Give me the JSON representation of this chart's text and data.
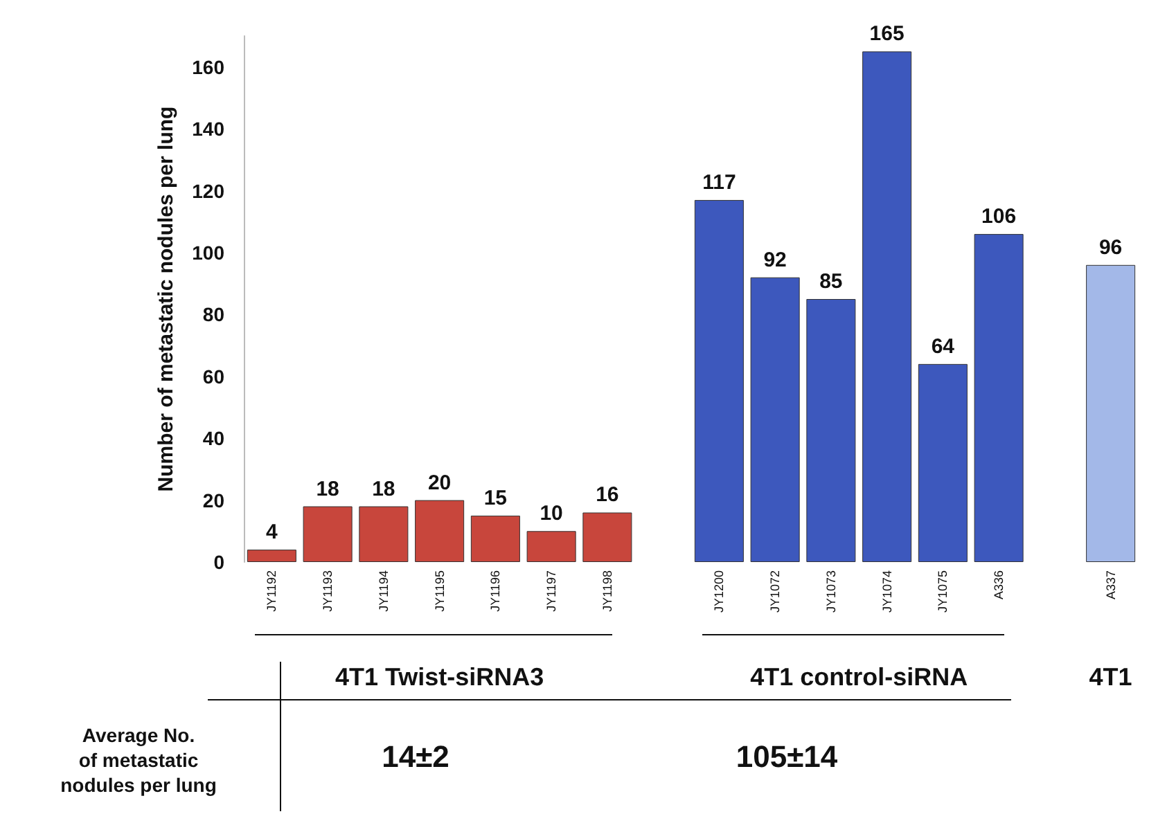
{
  "chart_data": {
    "type": "bar",
    "ylabel": "Number of metastatic nodules per lung",
    "categories": [
      "JY1192",
      "JY1193",
      "JY1194",
      "JY1195",
      "JY1196",
      "JY1197",
      "JY1198",
      null,
      "JY1200",
      "JY1072",
      "JY1073",
      "JY1074",
      "JY1075",
      "A336",
      null,
      "A337"
    ],
    "values": [
      4,
      18,
      18,
      20,
      15,
      10,
      16,
      null,
      117,
      92,
      85,
      165,
      64,
      106,
      null,
      96
    ],
    "colors": [
      "#c8463c",
      "#c8463c",
      "#c8463c",
      "#c8463c",
      "#c8463c",
      "#c8463c",
      "#c8463c",
      null,
      "#3d58bd",
      "#3d58bd",
      "#3d58bd",
      "#3d58bd",
      "#3d58bd",
      "#3d58bd",
      null,
      "#a3b8e8"
    ],
    "ylim": [
      0,
      170
    ],
    "yticks": [
      0,
      20,
      40,
      60,
      80,
      100,
      120,
      140,
      160
    ],
    "grid": false,
    "data_labels": true,
    "annotations": [
      "4T1 Twist-siRNA3",
      "4T1 control-siRNA",
      "4T1",
      "Average No.\nof metastatic\nnodules per lung",
      "14±2",
      "105±14"
    ]
  }
}
